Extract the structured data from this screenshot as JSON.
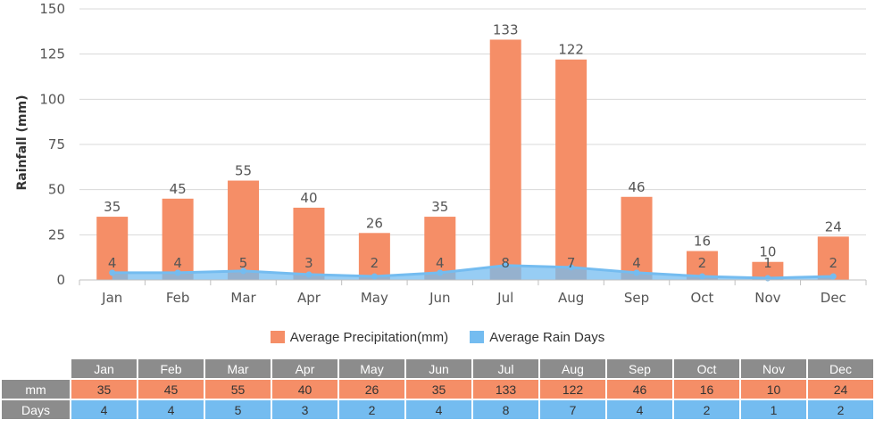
{
  "chart_data": {
    "type": "bar",
    "categories": [
      "Jan",
      "Feb",
      "Mar",
      "Apr",
      "May",
      "Jun",
      "Jul",
      "Aug",
      "Sep",
      "Oct",
      "Nov",
      "Dec"
    ],
    "series": [
      {
        "name": "Average Precipitation(mm)",
        "type": "bar",
        "values": [
          35,
          45,
          55,
          40,
          26,
          35,
          133,
          122,
          46,
          16,
          10,
          24
        ],
        "color": "#f58e67"
      },
      {
        "name": "Average Rain Days",
        "type": "area",
        "values": [
          4,
          4,
          5,
          3,
          2,
          4,
          8,
          7,
          4,
          2,
          1,
          2
        ],
        "color": "#74bcf0"
      }
    ],
    "ylabel": "Rainfall (mm)",
    "yticks": [
      "0",
      "25",
      "50",
      "75",
      "100",
      "125",
      "150"
    ],
    "ylim": [
      0,
      150
    ],
    "grid": true,
    "legend_position": "bottom"
  },
  "table": {
    "row_labels": {
      "mm": "mm",
      "days": "Days"
    }
  }
}
